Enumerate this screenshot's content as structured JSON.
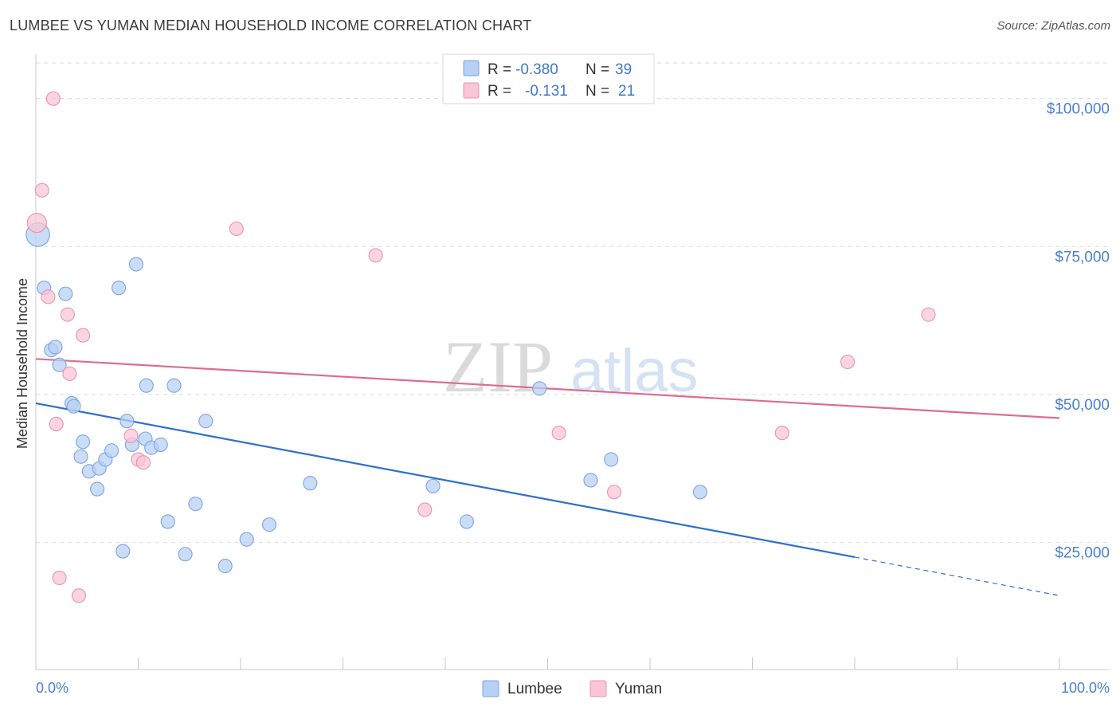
{
  "title": "LUMBEE VS YUMAN MEDIAN HOUSEHOLD INCOME CORRELATION CHART",
  "source": "Source: ZipAtlas.com",
  "watermark": {
    "zip": "ZIP",
    "atlas": "atlas"
  },
  "colors": {
    "lumbee_fill": "#b8d0f3",
    "lumbee_stroke": "#7aa6e0",
    "lumbee_line": "#2d6fd1",
    "yuman_fill": "#f8c6d6",
    "yuman_stroke": "#ec93b0",
    "yuman_line": "#e06a90",
    "grid": "#dcdcdc",
    "tick_text": "#4a7fd1"
  },
  "legend": {
    "rows": [
      {
        "r_label": "R =",
        "r_value": "-0.380",
        "n_label": "N =",
        "n_value": "39",
        "series": "lumbee"
      },
      {
        "r_label": "R =",
        "r_value": "-0.131",
        "n_label": "N =",
        "n_value": "21",
        "series": "yuman"
      }
    ]
  },
  "chart_data": {
    "type": "scatter",
    "title": "LUMBEE VS YUMAN MEDIAN HOUSEHOLD INCOME CORRELATION CHART",
    "xlabel": "",
    "ylabel": "Median Household Income",
    "xlim": [
      0,
      100
    ],
    "ylim": [
      3500,
      107500
    ],
    "y_ticks": [
      25000,
      50000,
      75000,
      100000
    ],
    "y_tick_labels": [
      "$25,000",
      "$50,000",
      "$75,000",
      "$100,000"
    ],
    "x_tick_labels": [
      "0.0%",
      "100.0%"
    ],
    "x_minor_ticks": [
      0,
      10,
      20,
      30,
      40,
      50,
      60,
      70,
      80,
      90,
      100
    ],
    "legend_position": "bottom",
    "series": [
      {
        "name": "Lumbee",
        "points": [
          [
            0.2,
            77000,
            3
          ],
          [
            0.8,
            68000,
            1
          ],
          [
            1.5,
            57500,
            1
          ],
          [
            1.9,
            58000,
            1
          ],
          [
            2.3,
            55000,
            1
          ],
          [
            2.9,
            67000,
            1
          ],
          [
            3.5,
            48500,
            1
          ],
          [
            3.7,
            48000,
            1
          ],
          [
            4.4,
            39500,
            1
          ],
          [
            4.6,
            42000,
            1
          ],
          [
            5.2,
            37000,
            1
          ],
          [
            6.0,
            34000,
            1
          ],
          [
            6.2,
            37500,
            1
          ],
          [
            6.8,
            39000,
            1
          ],
          [
            7.4,
            40500,
            1
          ],
          [
            8.1,
            68000,
            1
          ],
          [
            8.5,
            23500,
            1
          ],
          [
            8.9,
            45500,
            1
          ],
          [
            9.4,
            41500,
            1
          ],
          [
            9.8,
            72000,
            1
          ],
          [
            10.7,
            42500,
            1
          ],
          [
            10.8,
            51500,
            1
          ],
          [
            11.3,
            41000,
            1
          ],
          [
            12.2,
            41500,
            1
          ],
          [
            12.9,
            28500,
            1
          ],
          [
            13.5,
            51500,
            1
          ],
          [
            14.6,
            23000,
            1
          ],
          [
            15.6,
            31500,
            1
          ],
          [
            16.6,
            45500,
            1
          ],
          [
            18.5,
            21000,
            1
          ],
          [
            20.6,
            25500,
            1
          ],
          [
            22.8,
            28000,
            1
          ],
          [
            26.8,
            35000,
            1
          ],
          [
            38.8,
            34500,
            1
          ],
          [
            42.1,
            28500,
            1
          ],
          [
            49.2,
            51000,
            1
          ],
          [
            54.2,
            35500,
            1
          ],
          [
            56.2,
            39000,
            1
          ],
          [
            64.9,
            33500,
            1
          ]
        ],
        "trend": {
          "x0": 0,
          "y0": 48500,
          "x1": 80,
          "y1": 22500,
          "dashed_to_x": 100,
          "dashed_to_y": 16000
        }
      },
      {
        "name": "Yuman",
        "points": [
          [
            0.1,
            79000,
            2
          ],
          [
            0.6,
            84500,
            1
          ],
          [
            1.2,
            66500,
            1
          ],
          [
            1.7,
            100000,
            1
          ],
          [
            2.0,
            45000,
            1
          ],
          [
            2.3,
            19000,
            1
          ],
          [
            3.1,
            63500,
            1
          ],
          [
            3.3,
            53500,
            1
          ],
          [
            4.2,
            16000,
            1
          ],
          [
            4.6,
            60000,
            1
          ],
          [
            9.3,
            43000,
            1
          ],
          [
            10.0,
            39000,
            1
          ],
          [
            10.5,
            38500,
            1
          ],
          [
            19.6,
            78000,
            1
          ],
          [
            33.2,
            73500,
            1
          ],
          [
            38.0,
            30500,
            1
          ],
          [
            51.1,
            43500,
            1
          ],
          [
            56.5,
            33500,
            1
          ],
          [
            72.9,
            43500,
            1
          ],
          [
            79.3,
            55500,
            1
          ],
          [
            87.2,
            63500,
            1
          ]
        ],
        "trend": {
          "x0": 0,
          "y0": 56000,
          "x1": 100,
          "y1": 46000
        }
      }
    ]
  }
}
